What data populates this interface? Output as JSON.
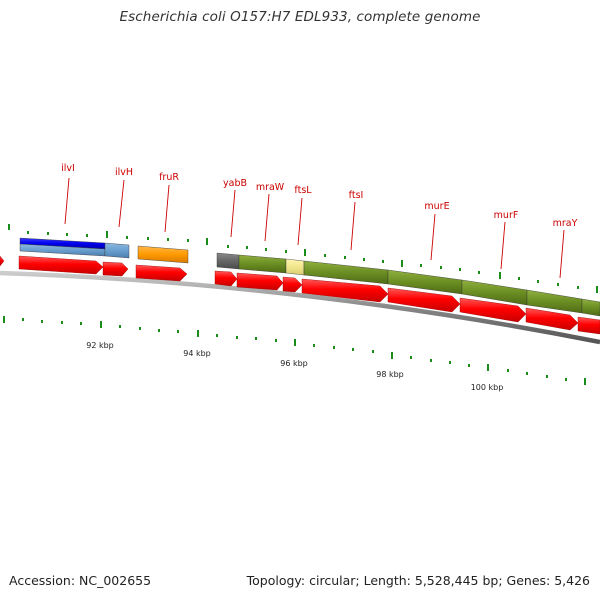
{
  "title": "Escherichia coli O157:H7 EDL933, complete genome",
  "footer": {
    "accession": "Accession: NC_002655",
    "stats": "Topology: circular; Length: 5,528,445 bp; Genes: 5,426"
  },
  "colors": {
    "cds": "#ff0000",
    "backbone": "#888888",
    "tick": "#1a8c1a",
    "label": "#cc0000",
    "blue": "#0000ee",
    "steelblue": "#6a9fd0",
    "orange": "#ff9900",
    "darkgray": "#666666",
    "olive": "#6b8e23",
    "khaki": "#f0e68c"
  },
  "gene_labels": [
    {
      "text": "ilvI"
    },
    {
      "text": "ilvH"
    },
    {
      "text": "fruR"
    },
    {
      "text": "yabB"
    },
    {
      "text": "mraW"
    },
    {
      "text": "ftsL"
    },
    {
      "text": "ftsI"
    },
    {
      "text": "murE"
    },
    {
      "text": "murF"
    },
    {
      "text": "mraY"
    }
  ],
  "kbp_labels": [
    {
      "text": "92 kbp"
    },
    {
      "text": "94 kbp"
    },
    {
      "text": "96 kbp"
    },
    {
      "text": "98 kbp"
    },
    {
      "text": "100 kbp"
    }
  ]
}
